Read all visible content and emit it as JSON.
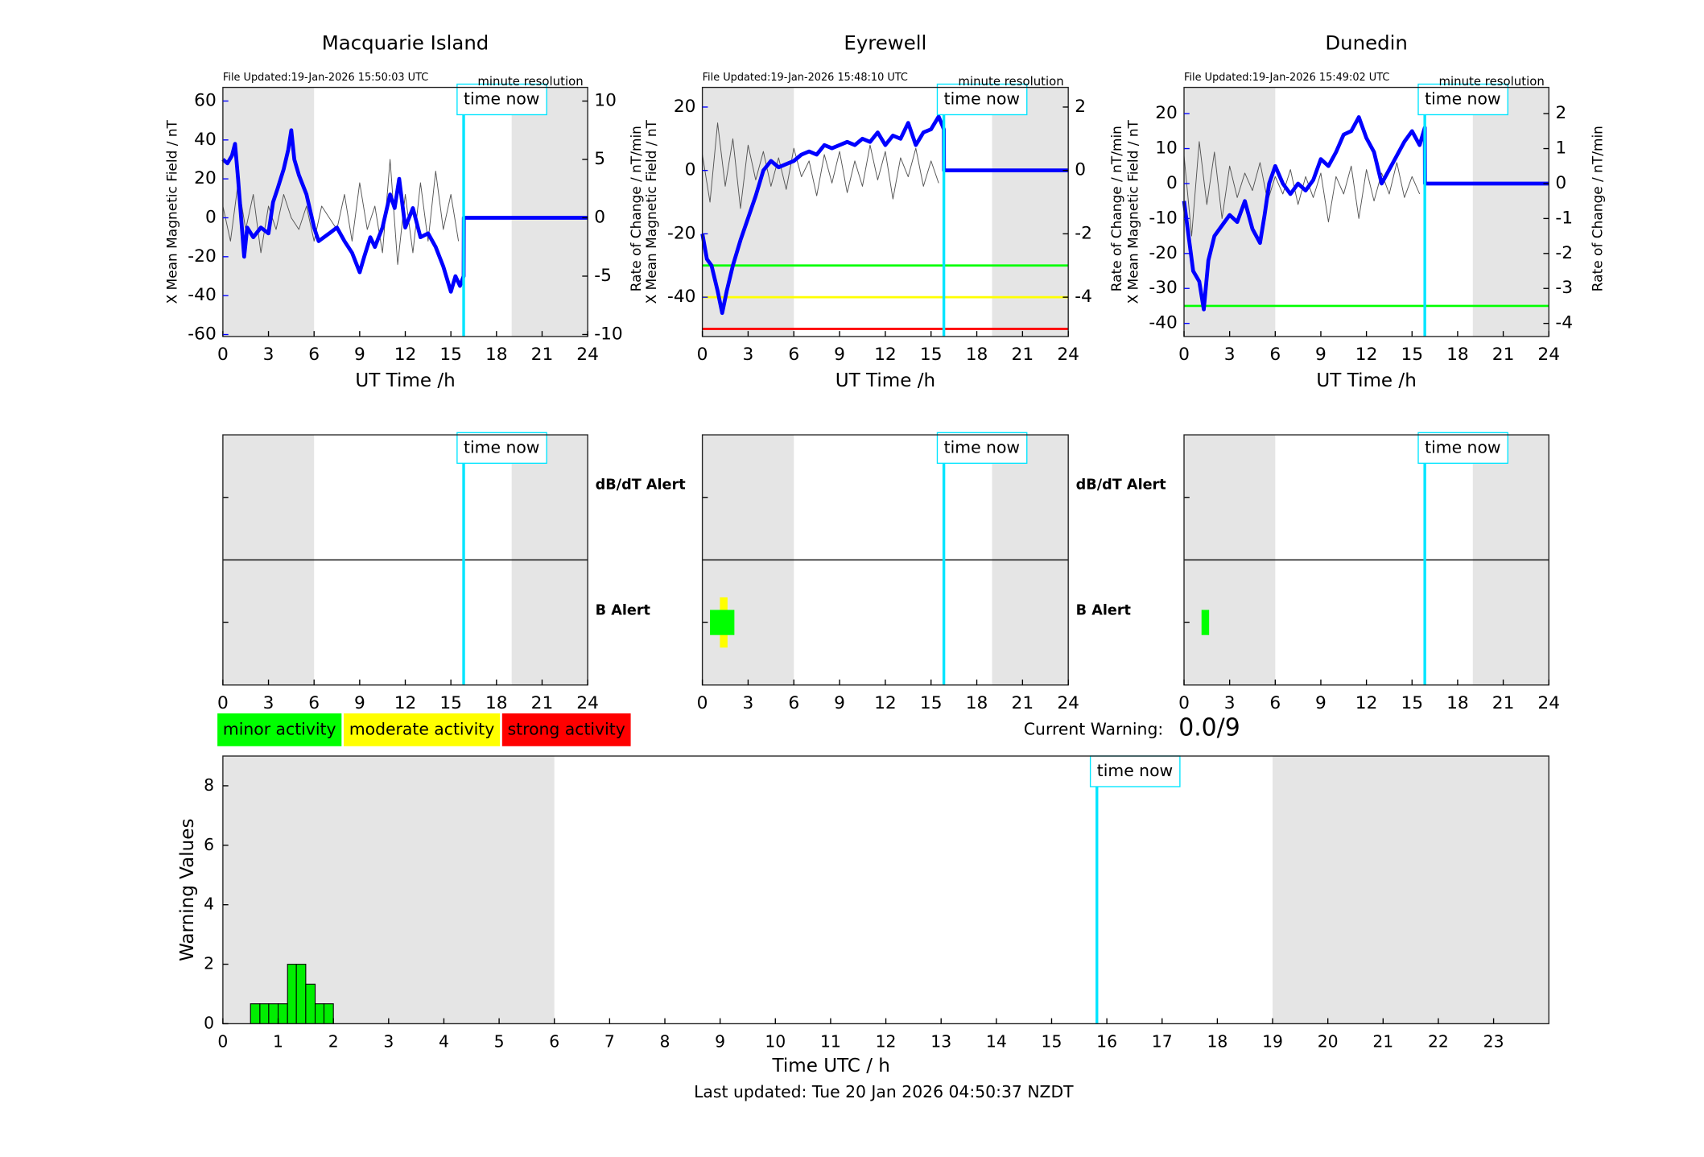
{
  "chart_data": [
    {
      "type": "line",
      "title": "Macquarie Island",
      "file_updated": "File Updated:19-Jan-2026 15:50:03 UTC",
      "note": "minute resolution",
      "xlabel": "UT Time /h",
      "ylabel": "X Mean Magnetic Field / nT",
      "y2label": "Rate of Change / nT/min",
      "xlim": [
        0,
        24
      ],
      "xticks": [
        0,
        3,
        6,
        9,
        12,
        15,
        18,
        21,
        24
      ],
      "ylim": [
        -61,
        67
      ],
      "yticks": [
        -60,
        -40,
        -20,
        0,
        20,
        40,
        60
      ],
      "y2lim": [
        -10.17,
        11.17
      ],
      "y2ticks": [
        -10,
        -5,
        0,
        5,
        10
      ],
      "shaded_regions": [
        [
          0,
          6
        ],
        [
          19,
          24
        ]
      ],
      "time_now": {
        "text": "time now",
        "x": 15.84
      },
      "series": [
        {
          "color": "#555555",
          "axis": "y2",
          "x": [
            0,
            0.5,
            1,
            1.5,
            2,
            2.5,
            3,
            3.5,
            4,
            4.5,
            5,
            5.5,
            6,
            6.5,
            7,
            7.5,
            8,
            8.5,
            9,
            9.5,
            10,
            10.5,
            11,
            11.5,
            12,
            12.5,
            13,
            13.5,
            14,
            14.5,
            15,
            15.5
          ],
          "values": [
            1,
            -2,
            3,
            -1,
            2,
            -3,
            1,
            -1,
            2,
            0,
            -1,
            1,
            -2,
            1,
            0,
            -1,
            2,
            -2,
            3,
            -1,
            1,
            -3,
            5,
            -4,
            2,
            -3,
            3,
            -2,
            4,
            -1,
            2,
            -2
          ]
        },
        {
          "color": "#0000ff",
          "axis": "y",
          "x": [
            0,
            0.3,
            0.6,
            0.8,
            1,
            1.2,
            1.4,
            1.6,
            2,
            2.5,
            3,
            3.3,
            3.6,
            4,
            4.3,
            4.5,
            4.7,
            5,
            5.5,
            6,
            6.3,
            7,
            7.5,
            8,
            8.5,
            9,
            9.3,
            9.7,
            10,
            10.5,
            11,
            11.3,
            11.6,
            12,
            12.5,
            13,
            13.5,
            14,
            14.5,
            15,
            15.3,
            15.6,
            15.84,
            15.85,
            24
          ],
          "values": [
            30,
            28,
            32,
            38,
            20,
            0,
            -20,
            -5,
            -10,
            -5,
            -8,
            8,
            15,
            25,
            35,
            45,
            30,
            22,
            12,
            -5,
            -12,
            -8,
            -5,
            -12,
            -18,
            -28,
            -20,
            -10,
            -15,
            -5,
            12,
            5,
            20,
            -5,
            5,
            -10,
            -8,
            -15,
            -25,
            -38,
            -30,
            -35,
            -30,
            0,
            0
          ]
        }
      ]
    },
    {
      "type": "line",
      "title": "Eyrewell",
      "file_updated": "File Updated:19-Jan-2026 15:48:10 UTC",
      "note": "minute resolution",
      "xlabel": "UT Time /h",
      "ylabel": "X Mean Magnetic Field / nT",
      "y2label": "Rate of Change / nT/min",
      "xlim": [
        0,
        24
      ],
      "xticks": [
        0,
        3,
        6,
        9,
        12,
        15,
        18,
        21,
        24
      ],
      "ylim": [
        -52.4,
        26.2
      ],
      "yticks": [
        -40,
        -20,
        0,
        20
      ],
      "y2lim": [
        -5.24,
        2.62
      ],
      "y2ticks": [
        -4,
        -2,
        0,
        2
      ],
      "shaded_regions": [
        [
          0,
          6
        ],
        [
          19,
          24
        ]
      ],
      "time_now": {
        "text": "time now",
        "x": 15.84
      },
      "thresholds": [
        {
          "value": -30,
          "color": "#00ff00"
        },
        {
          "value": -40,
          "color": "#ffff00"
        },
        {
          "value": -50,
          "color": "#ff0000"
        }
      ],
      "series": [
        {
          "color": "#555555",
          "axis": "y2",
          "x": [
            0,
            0.5,
            1,
            1.5,
            2,
            2.5,
            3,
            3.5,
            4,
            4.5,
            5,
            5.5,
            6,
            6.5,
            7,
            7.5,
            8,
            8.5,
            9,
            9.5,
            10,
            10.5,
            11,
            11.5,
            12,
            12.5,
            13,
            13.5,
            14,
            14.5,
            15,
            15.5
          ],
          "values": [
            0.5,
            -1,
            1.5,
            -0.5,
            1,
            -1.2,
            0.8,
            -0.3,
            0.6,
            -0.5,
            0.4,
            -0.6,
            0.7,
            -0.2,
            0.3,
            -0.8,
            0.5,
            -0.4,
            0.6,
            -0.7,
            0.3,
            -0.5,
            0.8,
            -0.3,
            0.6,
            -0.9,
            0.4,
            -0.2,
            0.7,
            -0.5,
            0.3,
            -0.4
          ]
        },
        {
          "color": "#0000ff",
          "axis": "y",
          "x": [
            0,
            0.3,
            0.6,
            1,
            1.3,
            1.6,
            2,
            2.5,
            3,
            3.5,
            4,
            4.5,
            5,
            5.5,
            6,
            6.5,
            7,
            7.5,
            8,
            8.5,
            9,
            9.5,
            10,
            10.5,
            11,
            11.5,
            12,
            12.5,
            13,
            13.5,
            14,
            14.5,
            15,
            15.5,
            15.84,
            15.85,
            24
          ],
          "values": [
            -20,
            -28,
            -30,
            -38,
            -45,
            -38,
            -30,
            -22,
            -15,
            -8,
            0,
            3,
            1,
            2,
            3,
            5,
            6,
            5,
            8,
            7,
            8,
            9,
            8,
            10,
            9,
            12,
            8,
            11,
            10,
            15,
            8,
            12,
            13,
            17,
            13,
            0,
            0
          ]
        }
      ]
    },
    {
      "type": "line",
      "title": "Dunedin",
      "file_updated": "File Updated:19-Jan-2026 15:49:02 UTC",
      "note": "minute resolution",
      "xlabel": "UT Time /h",
      "ylabel": "X Mean Magnetic Field / nT",
      "y2label": "Rate of Change / nT/min",
      "xlim": [
        0,
        24
      ],
      "xticks": [
        0,
        3,
        6,
        9,
        12,
        15,
        18,
        21,
        24
      ],
      "ylim": [
        -43.75,
        27.5
      ],
      "yticks": [
        -40,
        -30,
        -20,
        -10,
        0,
        10,
        20
      ],
      "y2lim": [
        -4.375,
        2.75
      ],
      "y2ticks": [
        -4,
        -3,
        -2,
        -1,
        0,
        1,
        2
      ],
      "shaded_regions": [
        [
          0,
          6
        ],
        [
          19,
          24
        ]
      ],
      "time_now": {
        "text": "time now",
        "x": 15.84
      },
      "thresholds": [
        {
          "value": -35,
          "color": "#00ff00"
        }
      ],
      "series": [
        {
          "color": "#555555",
          "axis": "y2",
          "x": [
            0,
            0.5,
            1,
            1.5,
            2,
            2.5,
            3,
            3.5,
            4,
            4.5,
            5,
            5.5,
            6,
            6.5,
            7,
            7.5,
            8,
            8.5,
            9,
            9.5,
            10,
            10.5,
            11,
            11.5,
            12,
            12.5,
            13,
            13.5,
            14,
            14.5,
            15,
            15.5
          ],
          "values": [
            0.8,
            -1.5,
            1.2,
            -0.6,
            0.9,
            -1,
            0.5,
            -0.4,
            0.3,
            -0.2,
            0.6,
            -0.5,
            0.2,
            -0.3,
            0.4,
            -0.6,
            0.2,
            -0.4,
            0.3,
            -1.1,
            0.2,
            -0.3,
            0.5,
            -1,
            0.4,
            -0.5,
            0.3,
            -0.3,
            0.6,
            -0.4,
            0.2,
            -0.3
          ]
        },
        {
          "color": "#0000ff",
          "axis": "y",
          "x": [
            0,
            0.3,
            0.6,
            1,
            1.3,
            1.6,
            2,
            2.5,
            3,
            3.5,
            4,
            4.5,
            5,
            5.3,
            5.6,
            6,
            6.5,
            7,
            7.5,
            8,
            8.5,
            9,
            9.5,
            10,
            10.5,
            11,
            11.5,
            12,
            12.5,
            13,
            13.5,
            14,
            14.5,
            15,
            15.5,
            15.84,
            15.85,
            24
          ],
          "values": [
            -5,
            -15,
            -25,
            -28,
            -36,
            -22,
            -15,
            -12,
            -9,
            -11,
            -5,
            -13,
            -17,
            -9,
            0,
            5,
            0,
            -3,
            0,
            -2,
            1,
            7,
            5,
            9,
            14,
            15,
            19,
            13,
            9,
            0,
            4,
            8,
            12,
            15,
            11,
            16,
            0,
            0
          ]
        }
      ]
    },
    {
      "type": "alert",
      "xlim": [
        0,
        24
      ],
      "xticks": [
        0,
        3,
        6,
        9,
        12,
        15,
        18,
        21,
        24
      ],
      "shaded_regions": [
        [
          0,
          6
        ],
        [
          19,
          24
        ]
      ],
      "time_now": {
        "text": "time now",
        "x": 15.84
      },
      "row_labels": {
        "dbdt": "dB/dT Alert",
        "b": "B Alert"
      }
    },
    {
      "type": "alert",
      "xlim": [
        0,
        24
      ],
      "xticks": [
        0,
        3,
        6,
        9,
        12,
        15,
        18,
        21,
        24
      ],
      "shaded_regions": [
        [
          0,
          6
        ],
        [
          19,
          24
        ]
      ],
      "time_now": {
        "text": "time now",
        "x": 15.84
      },
      "row_labels": {
        "dbdt": "dB/dT Alert",
        "b": "B Alert"
      },
      "b_alerts": [
        {
          "x0": 1.15,
          "x1": 1.65,
          "level": 2,
          "color": "#ffff00"
        },
        {
          "x0": 0.5,
          "x1": 2.1,
          "level": 1,
          "color": "#00ff00"
        }
      ]
    },
    {
      "type": "alert",
      "xlim": [
        0,
        24
      ],
      "xticks": [
        0,
        3,
        6,
        9,
        12,
        15,
        18,
        21,
        24
      ],
      "shaded_regions": [
        [
          0,
          6
        ],
        [
          19,
          24
        ]
      ],
      "time_now": {
        "text": "time now",
        "x": 15.84
      },
      "b_alerts": [
        {
          "x0": 1.15,
          "x1": 1.65,
          "level": 1,
          "color": "#00ff00"
        }
      ]
    },
    {
      "type": "histogram",
      "xlabel": "Time UTC / h",
      "ylabel": "Warning Values",
      "xlim": [
        0,
        24
      ],
      "xticks": [
        0,
        1,
        2,
        3,
        4,
        5,
        6,
        7,
        8,
        9,
        10,
        11,
        12,
        13,
        14,
        15,
        16,
        17,
        18,
        19,
        20,
        21,
        22,
        23
      ],
      "ylim": [
        0,
        9
      ],
      "yticks": [
        0,
        2,
        4,
        6,
        8
      ],
      "shaded_regions": [
        [
          0,
          6
        ],
        [
          19,
          24
        ]
      ],
      "time_now": {
        "text": "time now",
        "x": 15.82
      },
      "bins": [
        0.5,
        0.67,
        0.83,
        1.0,
        1.17,
        1.33,
        1.5,
        1.67,
        1.83,
        2.0
      ],
      "values": [
        0.67,
        0.67,
        0.67,
        0.67,
        2,
        2,
        1.33,
        0.67,
        0.67
      ],
      "color": "#00ee00",
      "legend": [
        {
          "label": "minor activity",
          "color": "#00ff00"
        },
        {
          "label": "moderate activity",
          "color": "#ffff00"
        },
        {
          "label": "strong activity",
          "color": "#ff0000"
        }
      ],
      "current_warning_label": "Current Warning:",
      "current_warning": "0.0/9",
      "footer": "Last updated: Tue 20 Jan 2026 04:50:37 NZDT"
    }
  ]
}
